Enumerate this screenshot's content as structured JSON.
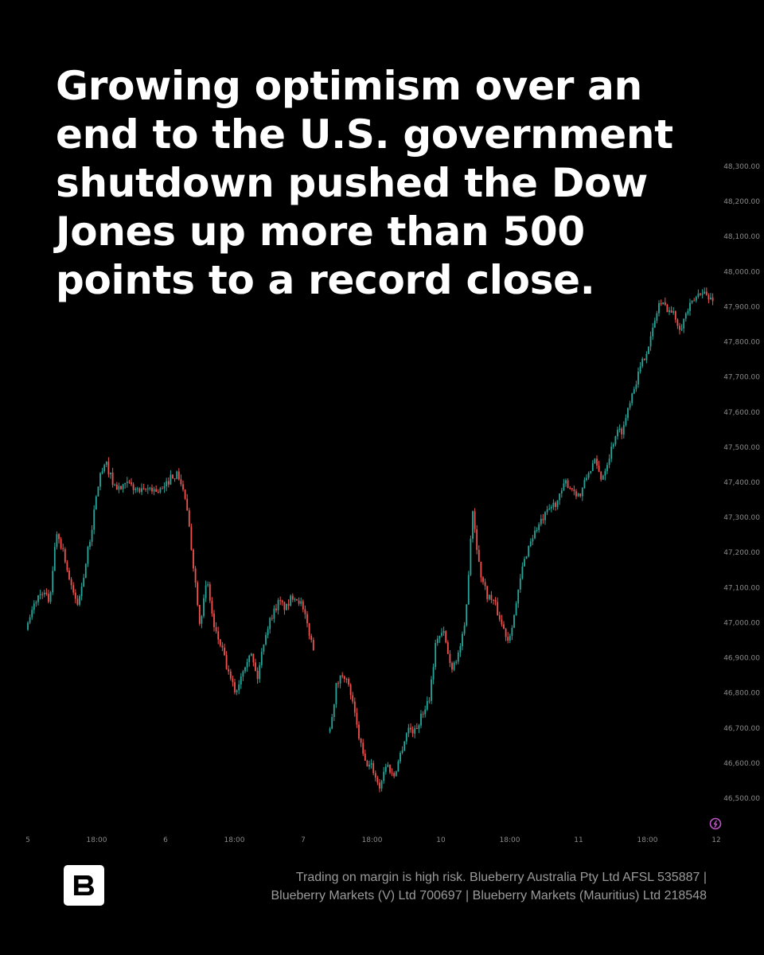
{
  "headline": {
    "lines": [
      "Growing optimism over an",
      "end to the U.S. government",
      "shutdown pushed the Dow",
      "Jones up more than 500",
      "points to a record close."
    ]
  },
  "footer": {
    "disclaimer_lines": [
      "Trading on margin is high risk. Blueberry Australia Pty Ltd  AFSL 535887 |",
      "Blueberry Markets (V) Ltd 700697 | Blueberry Markets (Mauritius) Ltd 218548"
    ],
    "logo_icon": "blueberry-b-logo-icon"
  },
  "colors": {
    "background": "#000000",
    "up": "#26a69a",
    "down": "#ef5350",
    "text": "#ffffff",
    "axis_text": "#8a8a8a",
    "disclaimer_text": "#9a9a9a",
    "badge": "#c055c8"
  },
  "chart_data": {
    "type": "line",
    "style": "candlestick",
    "x_tick_labels": [
      "5",
      "18:00",
      "6",
      "18:00",
      "7",
      "18:00",
      "10",
      "18:00",
      "11",
      "18:00",
      "12"
    ],
    "y_tick_labels": [
      "48,300.00",
      "48,200.00",
      "48,100.00",
      "48,000.00",
      "47,900.00",
      "47,800.00",
      "47,700.00",
      "47,600.00",
      "47,500.00",
      "47,400.00",
      "47,300.00",
      "47,200.00",
      "47,100.00",
      "47,000.00",
      "46,900.00",
      "46,800.00",
      "46,700.00",
      "46,600.00",
      "46,500.00"
    ],
    "y_ticks": [
      48300,
      48200,
      48100,
      48000,
      47900,
      47800,
      47700,
      47600,
      47500,
      47400,
      47300,
      47200,
      47100,
      47000,
      46900,
      46800,
      46700,
      46600,
      46500
    ],
    "ylim": [
      46450,
      48330
    ],
    "x_count": 11,
    "series": [
      {
        "values": [
          46990,
          47060,
          47090,
          47060,
          47260,
          47200,
          47100,
          47050,
          47160,
          47280,
          47420,
          47450,
          47390,
          47380,
          47395,
          47380,
          47370,
          47385,
          47375,
          47380,
          47420,
          47420,
          47350,
          47180,
          47000,
          47120,
          46980,
          46930,
          46850,
          46800,
          46870,
          46920,
          46840,
          46960,
          47020,
          47060,
          47040,
          47080,
          47060,
          46990,
          46910,
          null,
          46680,
          46820,
          46860,
          46800,
          46690,
          46600,
          46590,
          46530,
          46600,
          46560,
          46630,
          46700,
          46690,
          46740,
          46790,
          46960,
          46970,
          46870,
          46910,
          46990,
          47330,
          47150,
          47080,
          47060,
          47000,
          46950,
          47040,
          47160,
          47230,
          47270,
          47300,
          47330,
          47350,
          47400,
          47380,
          47360,
          47420,
          47460,
          47410,
          47470,
          47540,
          47550,
          47640,
          47700,
          47760,
          47820,
          47910,
          47900,
          47880,
          47840,
          47890,
          47920,
          47950,
          47920,
          47930
        ],
        "x_start": 0,
        "x_end": 10
      }
    ],
    "grid": false,
    "y_axis_position": "right"
  }
}
